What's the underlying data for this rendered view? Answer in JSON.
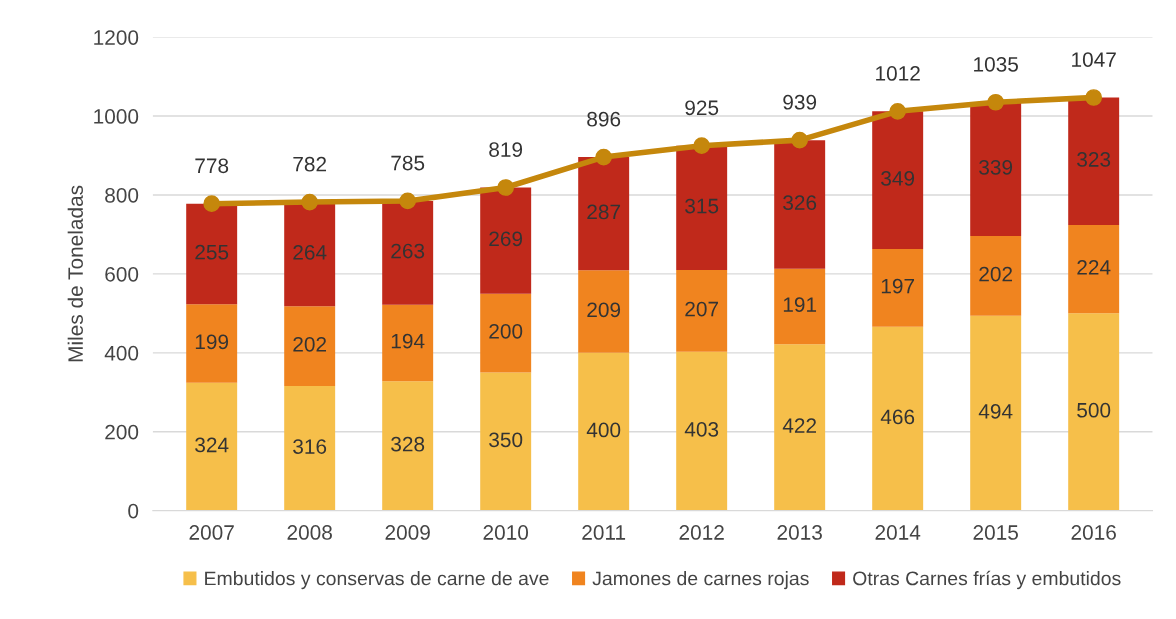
{
  "chart_data": {
    "type": "bar",
    "stacked": true,
    "ylabel": "Miles de Toneladas",
    "categories": [
      "2007",
      "2008",
      "2009",
      "2010",
      "2011",
      "2012",
      "2013",
      "2014",
      "2015",
      "2016"
    ],
    "series": [
      {
        "name": "Embutidos y conservas de carne de ave",
        "color": "#f6bf4a",
        "values": [
          324,
          316,
          328,
          350,
          400,
          403,
          422,
          466,
          494,
          500
        ]
      },
      {
        "name": "Jamones de carnes rojas",
        "color": "#f0841f",
        "values": [
          199,
          202,
          194,
          200,
          209,
          207,
          191,
          197,
          202,
          224
        ]
      },
      {
        "name": "Otras Carnes frías y embutidos",
        "color": "#c0291b",
        "values": [
          255,
          264,
          263,
          269,
          287,
          315,
          326,
          349,
          339,
          323
        ]
      },
      {
        "type": "line",
        "color": "#c5870c",
        "marker": "circle",
        "values": [
          778,
          782,
          785,
          819,
          896,
          925,
          939,
          1012,
          1035,
          1047
        ]
      }
    ],
    "ylim": [
      0,
      1200
    ],
    "yticks": [
      0,
      200,
      400,
      600,
      800,
      1000,
      1200
    ],
    "grid": "y",
    "legend": "bottom",
    "data_labels": true
  }
}
